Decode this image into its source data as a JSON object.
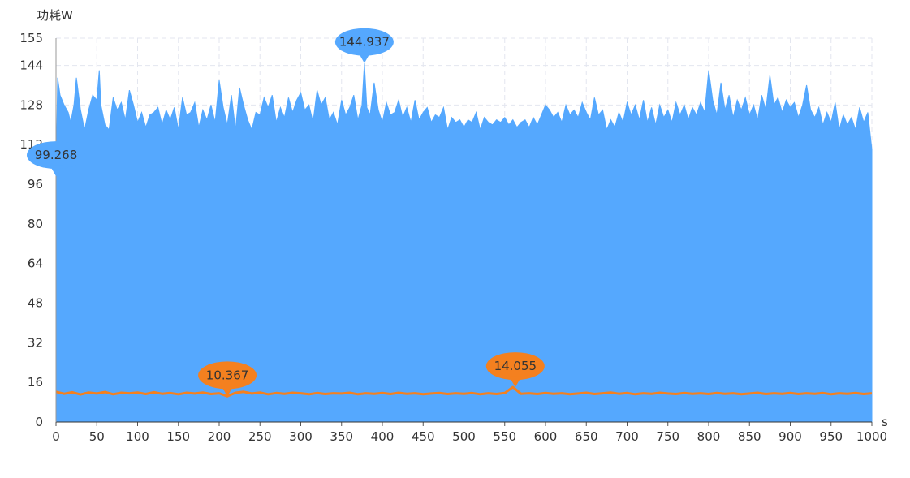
{
  "chart_data": {
    "type": "area",
    "ylabel": "功耗W",
    "xlabel": "s",
    "xlim": [
      0,
      1000
    ],
    "ylim": [
      0,
      155
    ],
    "x_ticks": [
      "0",
      "50",
      "100",
      "150",
      "200",
      "250",
      "300",
      "350",
      "400",
      "450",
      "500",
      "550",
      "600",
      "650",
      "700",
      "750",
      "800",
      "850",
      "900",
      "950",
      "1000"
    ],
    "y_ticks": [
      "0",
      "16",
      "32",
      "48",
      "64",
      "80",
      "96",
      "112",
      "128",
      "144",
      "155"
    ],
    "grid": true,
    "grid_style": "dashed",
    "series": [
      {
        "color": "#55a8fe",
        "style": "filled-area",
        "points": [
          [
            0,
            99.3
          ],
          [
            2,
            139
          ],
          [
            5,
            132
          ],
          [
            10,
            128
          ],
          [
            15,
            125
          ],
          [
            18,
            121
          ],
          [
            22,
            128
          ],
          [
            25,
            139
          ],
          [
            30,
            126
          ],
          [
            35,
            118
          ],
          [
            40,
            126
          ],
          [
            45,
            132
          ],
          [
            50,
            130
          ],
          [
            53,
            142
          ],
          [
            55,
            128
          ],
          [
            60,
            120
          ],
          [
            65,
            118
          ],
          [
            70,
            131
          ],
          [
            75,
            126
          ],
          [
            80,
            129
          ],
          [
            85,
            122
          ],
          [
            90,
            134
          ],
          [
            95,
            128
          ],
          [
            100,
            121
          ],
          [
            105,
            125
          ],
          [
            110,
            119
          ],
          [
            115,
            124
          ],
          [
            120,
            125
          ],
          [
            125,
            127
          ],
          [
            130,
            120
          ],
          [
            135,
            126
          ],
          [
            140,
            122
          ],
          [
            145,
            127
          ],
          [
            150,
            118
          ],
          [
            155,
            131
          ],
          [
            160,
            124
          ],
          [
            165,
            125
          ],
          [
            170,
            129
          ],
          [
            175,
            119
          ],
          [
            180,
            126
          ],
          [
            185,
            122
          ],
          [
            190,
            128
          ],
          [
            195,
            121
          ],
          [
            200,
            138
          ],
          [
            205,
            127
          ],
          [
            210,
            120
          ],
          [
            215,
            132
          ],
          [
            220,
            118
          ],
          [
            225,
            135
          ],
          [
            230,
            128
          ],
          [
            235,
            122
          ],
          [
            240,
            118
          ],
          [
            245,
            125
          ],
          [
            250,
            124
          ],
          [
            255,
            131
          ],
          [
            260,
            127
          ],
          [
            265,
            132
          ],
          [
            270,
            121
          ],
          [
            275,
            127
          ],
          [
            280,
            123
          ],
          [
            285,
            131
          ],
          [
            290,
            125
          ],
          [
            295,
            130
          ],
          [
            300,
            133
          ],
          [
            305,
            126
          ],
          [
            310,
            128
          ],
          [
            315,
            121
          ],
          [
            320,
            134
          ],
          [
            325,
            128
          ],
          [
            330,
            131
          ],
          [
            335,
            122
          ],
          [
            340,
            125
          ],
          [
            345,
            120
          ],
          [
            350,
            130
          ],
          [
            355,
            124
          ],
          [
            360,
            127
          ],
          [
            365,
            132
          ],
          [
            370,
            122
          ],
          [
            375,
            128
          ],
          [
            378,
            144.9
          ],
          [
            381,
            127
          ],
          [
            385,
            124
          ],
          [
            390,
            137
          ],
          [
            395,
            126
          ],
          [
            400,
            121
          ],
          [
            405,
            129
          ],
          [
            410,
            124
          ],
          [
            415,
            125
          ],
          [
            420,
            130
          ],
          [
            425,
            123
          ],
          [
            430,
            127
          ],
          [
            435,
            121
          ],
          [
            440,
            130
          ],
          [
            445,
            122
          ],
          [
            450,
            125
          ],
          [
            455,
            127
          ],
          [
            460,
            121
          ],
          [
            465,
            124
          ],
          [
            470,
            123
          ],
          [
            475,
            127
          ],
          [
            480,
            118
          ],
          [
            485,
            123
          ],
          [
            490,
            121
          ],
          [
            495,
            122
          ],
          [
            500,
            119
          ],
          [
            505,
            122
          ],
          [
            510,
            121
          ],
          [
            515,
            125
          ],
          [
            520,
            118
          ],
          [
            525,
            123
          ],
          [
            530,
            121
          ],
          [
            535,
            120
          ],
          [
            540,
            122
          ],
          [
            545,
            121
          ],
          [
            550,
            123
          ],
          [
            555,
            120
          ],
          [
            560,
            122
          ],
          [
            565,
            119
          ],
          [
            570,
            121
          ],
          [
            575,
            122
          ],
          [
            580,
            119
          ],
          [
            585,
            123
          ],
          [
            590,
            120
          ],
          [
            595,
            124
          ],
          [
            600,
            128
          ],
          [
            605,
            126
          ],
          [
            610,
            123
          ],
          [
            615,
            125
          ],
          [
            620,
            121
          ],
          [
            625,
            128
          ],
          [
            630,
            124
          ],
          [
            635,
            126
          ],
          [
            640,
            123
          ],
          [
            645,
            129
          ],
          [
            650,
            125
          ],
          [
            655,
            122
          ],
          [
            660,
            131
          ],
          [
            665,
            124
          ],
          [
            670,
            126
          ],
          [
            675,
            118
          ],
          [
            680,
            122
          ],
          [
            685,
            119
          ],
          [
            690,
            125
          ],
          [
            695,
            121
          ],
          [
            700,
            129
          ],
          [
            705,
            124
          ],
          [
            710,
            128
          ],
          [
            715,
            122
          ],
          [
            720,
            130
          ],
          [
            725,
            121
          ],
          [
            730,
            127
          ],
          [
            735,
            120
          ],
          [
            740,
            128
          ],
          [
            745,
            123
          ],
          [
            750,
            126
          ],
          [
            755,
            121
          ],
          [
            760,
            129
          ],
          [
            765,
            124
          ],
          [
            770,
            128
          ],
          [
            775,
            122
          ],
          [
            780,
            127
          ],
          [
            785,
            124
          ],
          [
            790,
            129
          ],
          [
            795,
            125
          ],
          [
            800,
            142
          ],
          [
            805,
            130
          ],
          [
            810,
            124
          ],
          [
            815,
            137
          ],
          [
            820,
            126
          ],
          [
            825,
            132
          ],
          [
            830,
            123
          ],
          [
            835,
            130
          ],
          [
            840,
            126
          ],
          [
            845,
            131
          ],
          [
            850,
            124
          ],
          [
            855,
            128
          ],
          [
            860,
            122
          ],
          [
            865,
            132
          ],
          [
            870,
            126
          ],
          [
            875,
            140
          ],
          [
            880,
            128
          ],
          [
            885,
            131
          ],
          [
            890,
            125
          ],
          [
            895,
            130
          ],
          [
            900,
            127
          ],
          [
            905,
            129
          ],
          [
            910,
            123
          ],
          [
            915,
            128
          ],
          [
            920,
            136
          ],
          [
            925,
            126
          ],
          [
            930,
            123
          ],
          [
            935,
            127
          ],
          [
            940,
            120
          ],
          [
            945,
            125
          ],
          [
            950,
            121
          ],
          [
            955,
            129
          ],
          [
            960,
            118
          ],
          [
            965,
            124
          ],
          [
            970,
            120
          ],
          [
            975,
            123
          ],
          [
            980,
            118
          ],
          [
            985,
            127
          ],
          [
            990,
            121
          ],
          [
            995,
            125
          ],
          [
            1000,
            110
          ]
        ]
      },
      {
        "color": "#f4801f",
        "style": "line",
        "points": [
          [
            0,
            12.2
          ],
          [
            10,
            11.4
          ],
          [
            20,
            12.0
          ],
          [
            30,
            11.1
          ],
          [
            40,
            11.9
          ],
          [
            50,
            11.5
          ],
          [
            60,
            12.1
          ],
          [
            70,
            11.2
          ],
          [
            80,
            11.8
          ],
          [
            90,
            11.6
          ],
          [
            100,
            11.9
          ],
          [
            110,
            11.3
          ],
          [
            120,
            12.0
          ],
          [
            130,
            11.4
          ],
          [
            140,
            11.7
          ],
          [
            150,
            11.2
          ],
          [
            160,
            11.8
          ],
          [
            170,
            11.5
          ],
          [
            180,
            11.9
          ],
          [
            190,
            11.3
          ],
          [
            200,
            11.6
          ],
          [
            210,
            10.4
          ],
          [
            220,
            11.8
          ],
          [
            230,
            12.2
          ],
          [
            240,
            11.5
          ],
          [
            250,
            11.9
          ],
          [
            260,
            11.2
          ],
          [
            270,
            11.7
          ],
          [
            280,
            11.4
          ],
          [
            290,
            11.8
          ],
          [
            300,
            11.6
          ],
          [
            310,
            11.2
          ],
          [
            320,
            11.7
          ],
          [
            330,
            11.3
          ],
          [
            340,
            11.6
          ],
          [
            350,
            11.5
          ],
          [
            360,
            11.8
          ],
          [
            370,
            11.2
          ],
          [
            380,
            11.6
          ],
          [
            390,
            11.4
          ],
          [
            400,
            11.7
          ],
          [
            410,
            11.3
          ],
          [
            420,
            11.8
          ],
          [
            430,
            11.4
          ],
          [
            440,
            11.6
          ],
          [
            450,
            11.2
          ],
          [
            460,
            11.5
          ],
          [
            470,
            11.7
          ],
          [
            480,
            11.3
          ],
          [
            490,
            11.6
          ],
          [
            500,
            11.4
          ],
          [
            510,
            11.7
          ],
          [
            520,
            11.2
          ],
          [
            530,
            11.6
          ],
          [
            540,
            11.3
          ],
          [
            550,
            11.7
          ],
          [
            560,
            14.1
          ],
          [
            570,
            11.4
          ],
          [
            580,
            11.6
          ],
          [
            590,
            11.3
          ],
          [
            600,
            11.7
          ],
          [
            610,
            11.4
          ],
          [
            620,
            11.6
          ],
          [
            630,
            11.2
          ],
          [
            640,
            11.5
          ],
          [
            650,
            11.8
          ],
          [
            660,
            11.3
          ],
          [
            670,
            11.6
          ],
          [
            680,
            11.9
          ],
          [
            690,
            11.4
          ],
          [
            700,
            11.7
          ],
          [
            710,
            11.2
          ],
          [
            720,
            11.6
          ],
          [
            730,
            11.4
          ],
          [
            740,
            11.8
          ],
          [
            750,
            11.5
          ],
          [
            760,
            11.3
          ],
          [
            770,
            11.7
          ],
          [
            780,
            11.4
          ],
          [
            790,
            11.6
          ],
          [
            800,
            11.3
          ],
          [
            810,
            11.7
          ],
          [
            820,
            11.4
          ],
          [
            830,
            11.6
          ],
          [
            840,
            11.2
          ],
          [
            850,
            11.5
          ],
          [
            860,
            11.8
          ],
          [
            870,
            11.3
          ],
          [
            880,
            11.6
          ],
          [
            890,
            11.4
          ],
          [
            900,
            11.7
          ],
          [
            910,
            11.3
          ],
          [
            920,
            11.6
          ],
          [
            930,
            11.4
          ],
          [
            940,
            11.7
          ],
          [
            950,
            11.2
          ],
          [
            960,
            11.6
          ],
          [
            970,
            11.4
          ],
          [
            980,
            11.7
          ],
          [
            990,
            11.3
          ],
          [
            1000,
            11.6
          ]
        ]
      }
    ],
    "markers": [
      {
        "label": "144.937",
        "x": 378,
        "y": 144.937,
        "color": "#55a8fe",
        "series": 0
      },
      {
        "label": "99.268",
        "x": 0,
        "y": 99.268,
        "color": "#55a8fe",
        "series": 0
      },
      {
        "label": "10.367",
        "x": 210,
        "y": 10.367,
        "color": "#f4801f",
        "series": 1
      },
      {
        "label": "14.055",
        "x": 563,
        "y": 14.055,
        "color": "#f4801f",
        "series": 1
      }
    ]
  }
}
